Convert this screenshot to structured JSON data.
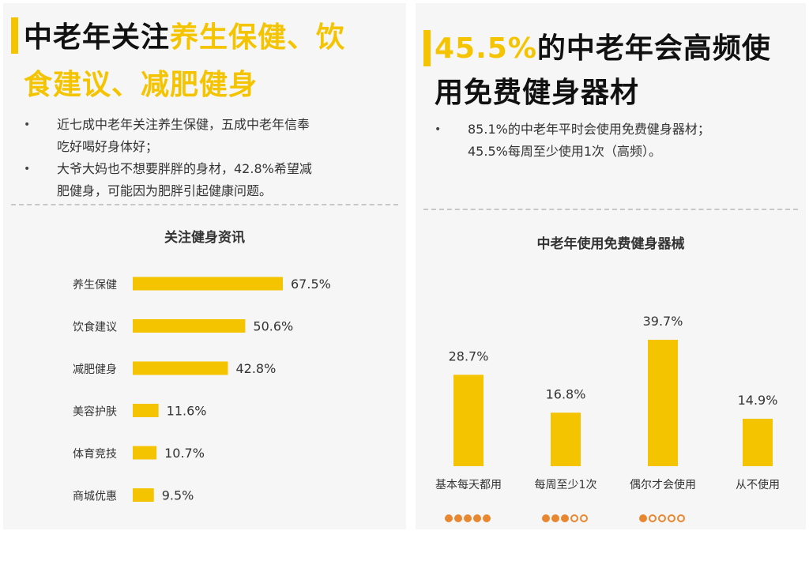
{
  "left": {
    "headline_line1_dark": "中老年关注",
    "headline_line1_accent": "养生保健、饮",
    "headline_line2_accent": "食建议、减肥健身",
    "bullets": [
      {
        "dot": "•",
        "line1": "近七成中老年关注养生保健，五成中老年信奉",
        "line2": "吃好喝好身体好；"
      },
      {
        "dot": "•",
        "line1": "大爷大妈也不想要胖胖的身材，42.8%希望减",
        "line2": "肥健身，可能因为肥胖引起健康问题。"
      }
    ]
  },
  "right": {
    "headline_line1_accent": "45.5%",
    "headline_line1_dark": "的中老年会高频使",
    "headline_line2_dark": "用免费健身器材",
    "bullets": [
      {
        "dot": "•",
        "line1": "85.1%的中老年平时会使用免费健身器材；",
        "line2": "45.5%每周至少使用1次（高频）。"
      }
    ]
  },
  "colors": {
    "accent": "#f5c400",
    "dots": "#e8872f"
  },
  "chart_data": [
    {
      "type": "bar",
      "orientation": "horizontal",
      "title": "关注健身资讯",
      "categories": [
        "养生保健",
        "饮食建议",
        "减肥健身",
        "美容护肤",
        "体育竞技",
        "商城优惠"
      ],
      "values": [
        67.5,
        50.6,
        42.8,
        11.6,
        10.7,
        9.5
      ],
      "labels": [
        "67.5%",
        "50.6%",
        "42.8%",
        "11.6%",
        "10.7%",
        "9.5%"
      ]
    },
    {
      "type": "bar",
      "orientation": "vertical",
      "title": "中老年使用免费健身器械",
      "categories": [
        "基本每天都用",
        "每周至少1次",
        "偶尔才会使用",
        "从不使用"
      ],
      "values": [
        28.7,
        16.8,
        39.7,
        14.9
      ],
      "labels": [
        "28.7%",
        "16.8%",
        "39.7%",
        "14.9%"
      ],
      "frequency_dots": [
        5,
        3,
        1,
        0
      ]
    }
  ]
}
